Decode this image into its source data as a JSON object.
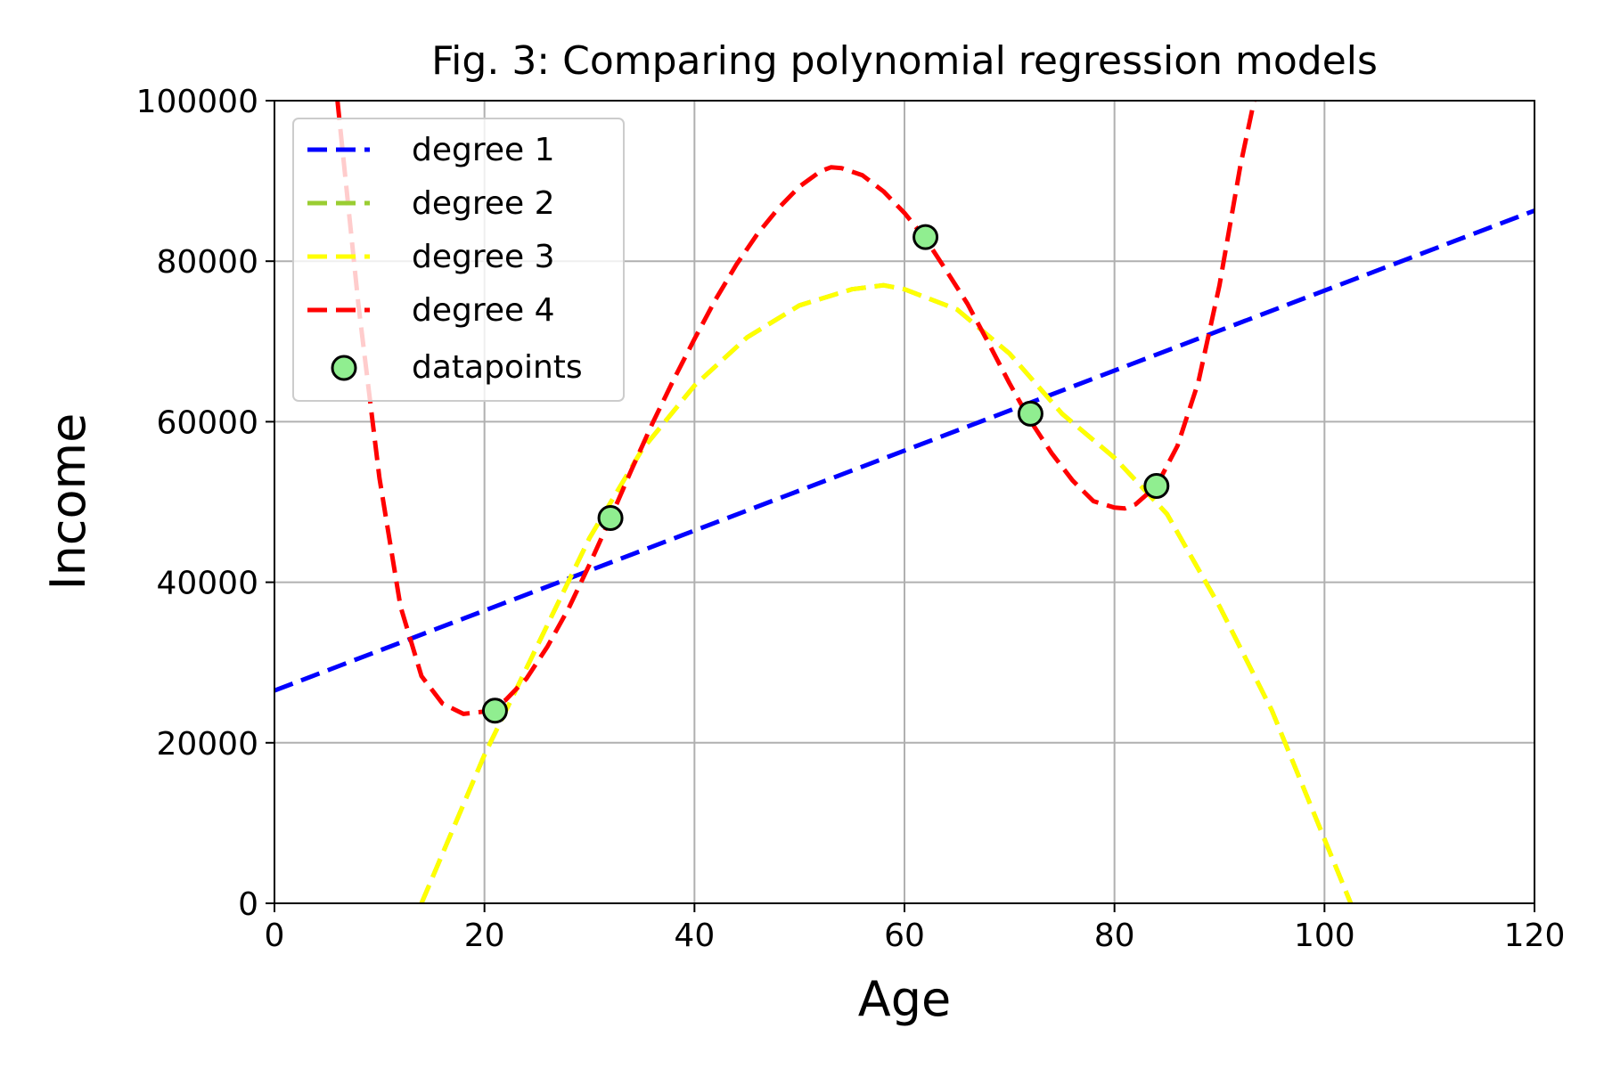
{
  "chart_data": {
    "type": "line",
    "title": "Fig. 3: Comparing polynomial regression models",
    "xlabel": "Age",
    "ylabel": "Income",
    "xlim": [
      0,
      120
    ],
    "ylim": [
      0,
      100000
    ],
    "xticks": [
      "0",
      "20",
      "40",
      "60",
      "80",
      "100",
      "120"
    ],
    "yticks": [
      "0",
      "20000",
      "40000",
      "60000",
      "80000",
      "100000"
    ],
    "grid": true,
    "legend_position": "upper-left",
    "series": [
      {
        "name": "degree 1",
        "color": "#0000ff",
        "style": "dashed",
        "x": [
          0,
          120
        ],
        "y": [
          26500,
          86300
        ]
      },
      {
        "name": "degree 2",
        "color": "#9acd32",
        "style": "dashed",
        "x": [
          14,
          20,
          25,
          30,
          35,
          40,
          45,
          50,
          55,
          58,
          60,
          65,
          70,
          75,
          80,
          85,
          90,
          95,
          100,
          102.5
        ],
        "y": [
          0,
          18500,
          32000,
          45500,
          56500,
          64500,
          70500,
          74500,
          76500,
          77000,
          76500,
          74000,
          68500,
          61000,
          55500,
          48500,
          37000,
          24000,
          8000,
          0
        ]
      },
      {
        "name": "degree 3",
        "color": "#ffff00",
        "style": "dashed",
        "x": [
          14,
          20,
          25,
          30,
          35,
          40,
          45,
          50,
          55,
          58,
          60,
          65,
          70,
          75,
          80,
          85,
          90,
          95,
          100,
          102.5
        ],
        "y": [
          0,
          18500,
          32000,
          45500,
          56500,
          64500,
          70500,
          74500,
          76500,
          77000,
          76500,
          74000,
          68500,
          61000,
          55500,
          48500,
          37000,
          24000,
          8000,
          0
        ]
      },
      {
        "name": "degree 4",
        "color": "#ff0000",
        "style": "dashed",
        "x": [
          6,
          8,
          10,
          12,
          14,
          16,
          18,
          20,
          22,
          24,
          26,
          28,
          30,
          32,
          34,
          36,
          38,
          40,
          42,
          44,
          46,
          48,
          50,
          52,
          53,
          54,
          56,
          58,
          60,
          62,
          64,
          66,
          68,
          70,
          72,
          74,
          76,
          78,
          80,
          81,
          82,
          84,
          86,
          88,
          90,
          92,
          93.3
        ],
        "y": [
          100000,
          74500,
          53000,
          37000,
          28300,
          24900,
          23600,
          23900,
          25300,
          28000,
          32000,
          36700,
          42200,
          48000,
          54000,
          59800,
          65200,
          70300,
          75200,
          79600,
          83400,
          86600,
          89300,
          91200,
          91700,
          91600,
          90700,
          88700,
          86000,
          82800,
          78800,
          74700,
          69800,
          64800,
          60100,
          56100,
          52700,
          50100,
          49300,
          49200,
          49700,
          52000,
          57000,
          65000,
          77000,
          92000,
          100000
        ]
      }
    ],
    "points": {
      "name": "datapoints",
      "color": "#90ee90",
      "x": [
        21,
        32,
        62,
        72,
        84
      ],
      "y": [
        24000,
        48000,
        83000,
        61000,
        52000
      ]
    }
  }
}
